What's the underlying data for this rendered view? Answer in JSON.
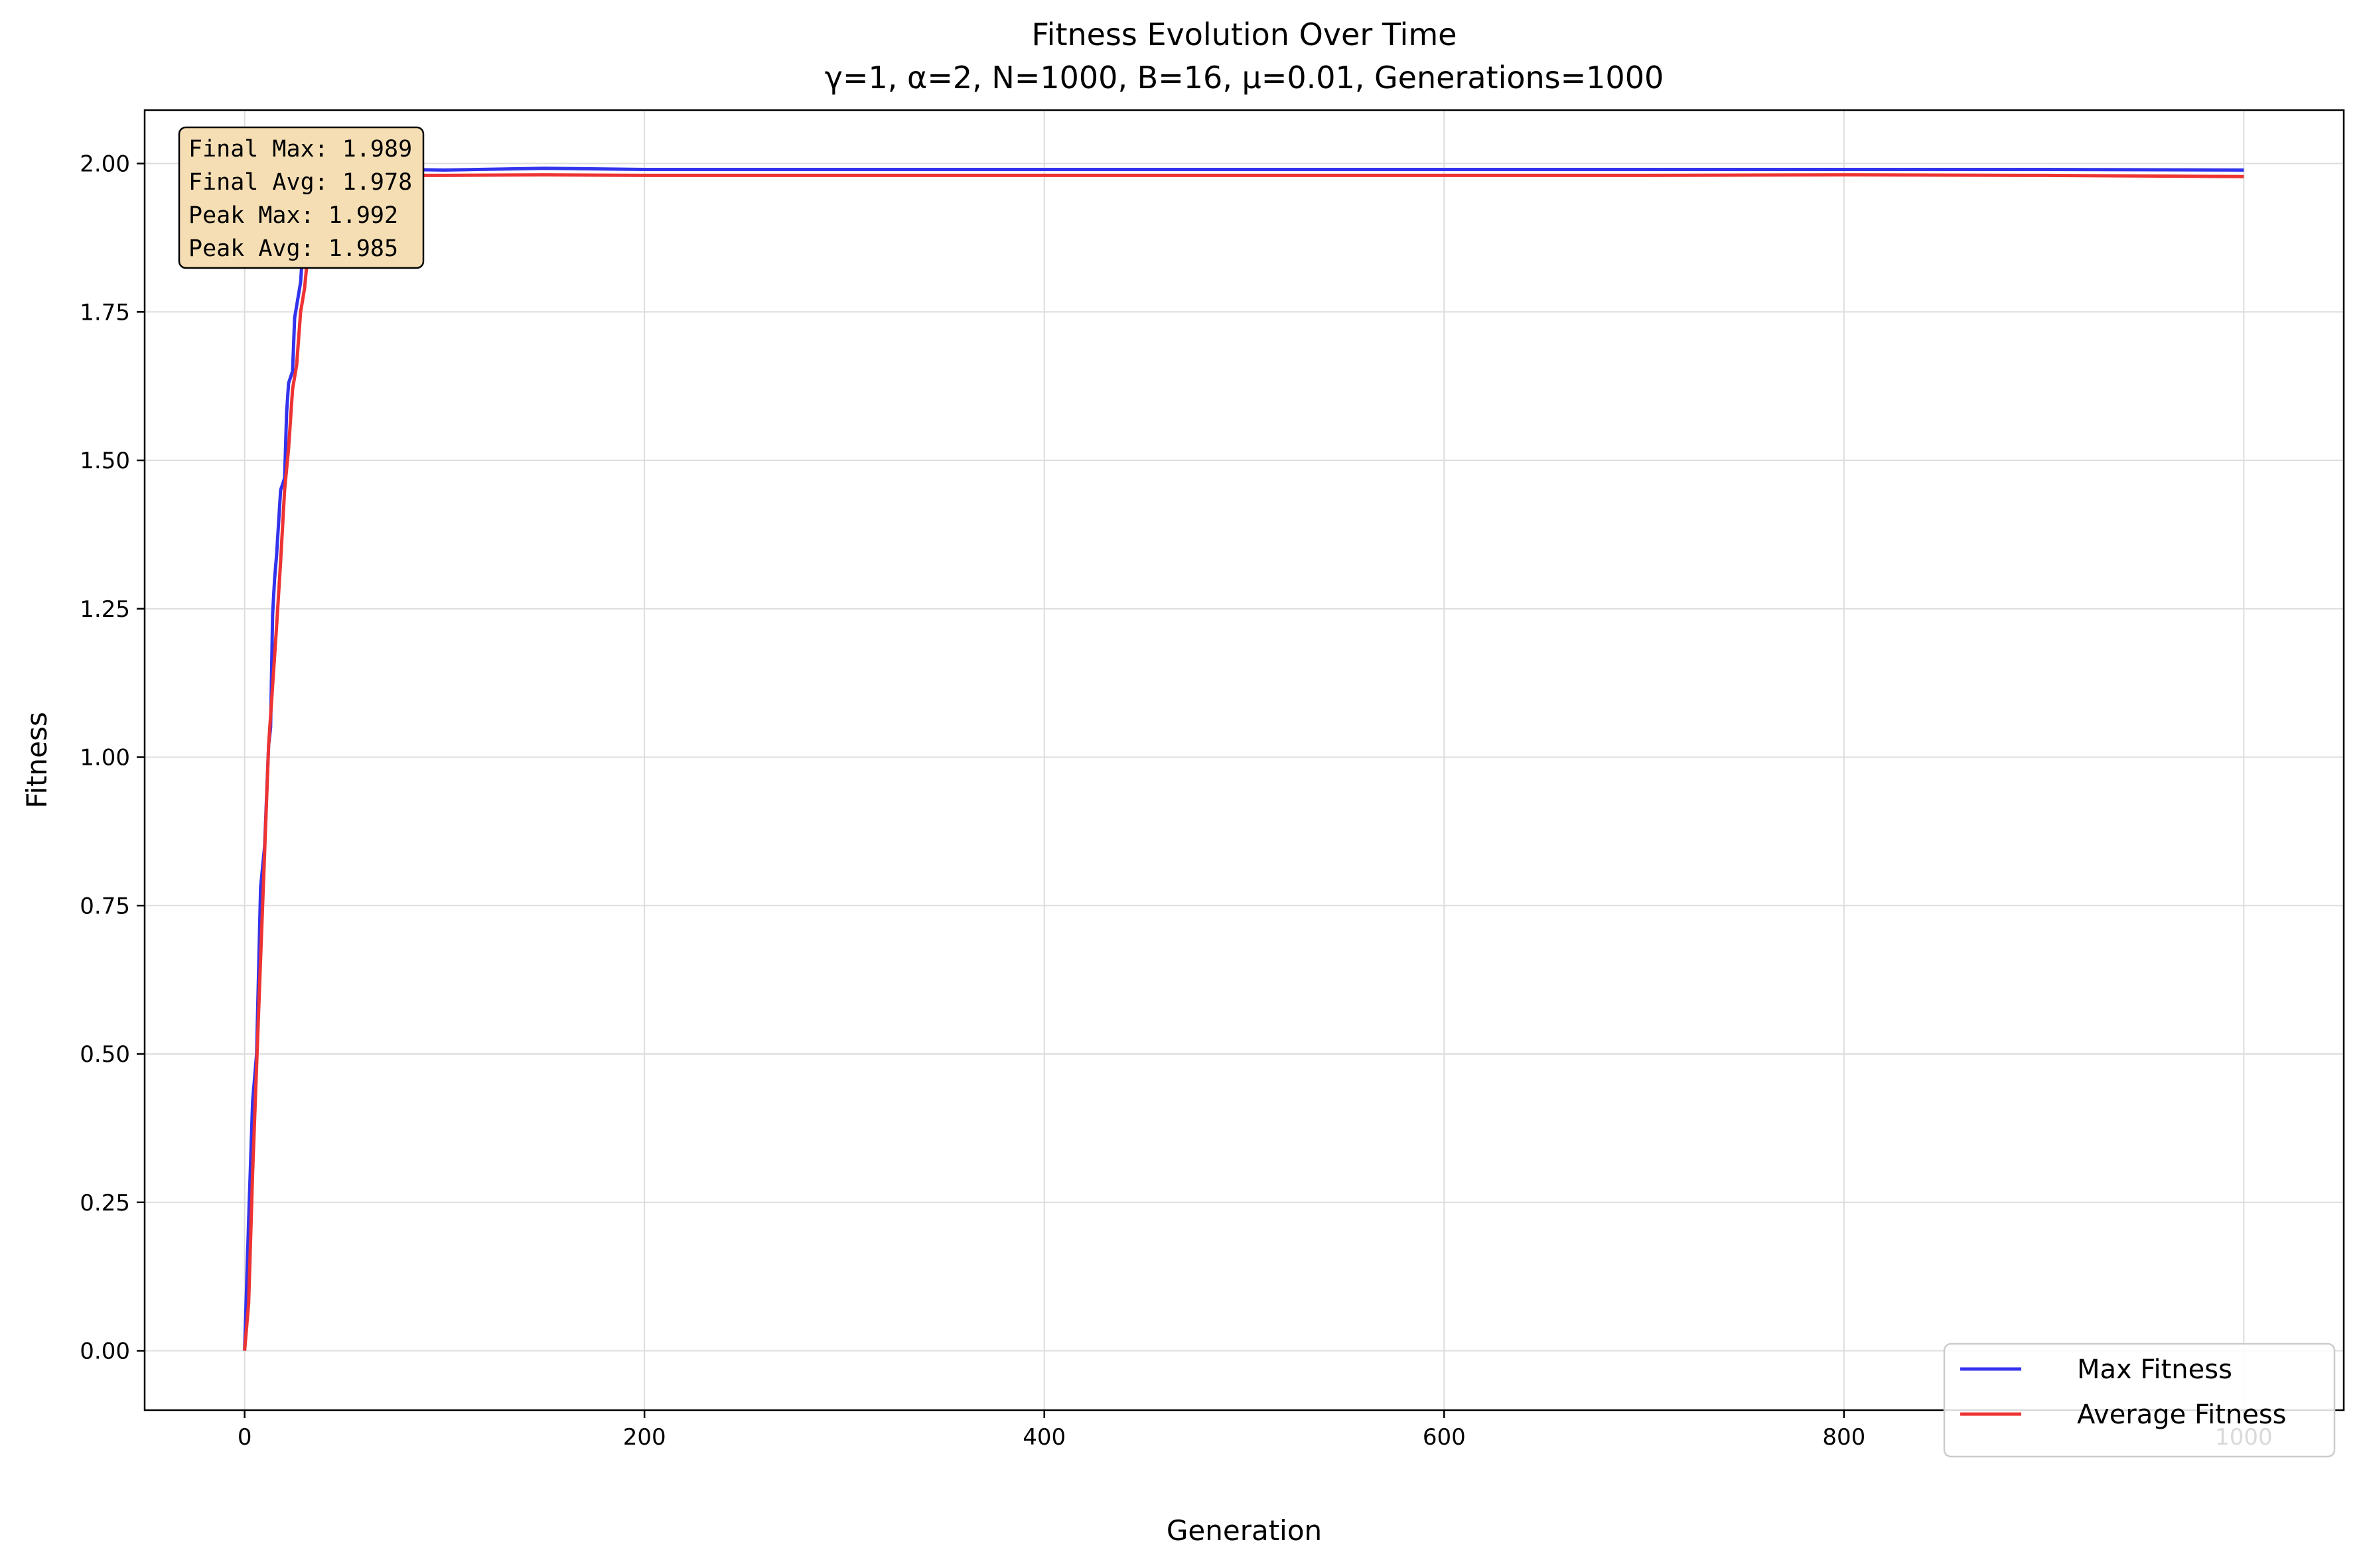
{
  "chart_data": {
    "type": "line",
    "title": "Fitness Evolution Over Time",
    "subtitle": "γ=1, α=2, N=1000, B=16, μ=0.01, Generations=1000",
    "xlabel": "Generation",
    "ylabel": "Fitness",
    "xlim": [
      -50,
      1050
    ],
    "ylim": [
      -0.1,
      2.09
    ],
    "xticks": [
      0,
      200,
      400,
      600,
      800,
      1000
    ],
    "xtick_labels": [
      "0",
      "200",
      "400",
      "600",
      "800",
      "1000"
    ],
    "yticks": [
      0.0,
      0.25,
      0.5,
      0.75,
      1.0,
      1.25,
      1.5,
      1.75,
      2.0
    ],
    "ytick_labels": [
      "0.00",
      "0.25",
      "0.50",
      "0.75",
      "1.00",
      "1.25",
      "1.50",
      "1.75",
      "2.00"
    ],
    "grid": true,
    "legend_position": "bottom-right",
    "series": [
      {
        "name": "Max Fitness",
        "color": "#3333ee",
        "x": [
          0,
          2,
          4,
          6,
          8,
          10,
          12,
          13,
          14,
          15,
          16,
          18,
          20,
          21,
          22,
          24,
          25,
          26,
          28,
          29,
          30,
          32,
          34,
          35,
          36,
          38,
          40,
          42,
          45,
          50,
          60,
          80,
          100,
          150,
          200,
          300,
          400,
          500,
          600,
          700,
          800,
          900,
          1000
        ],
        "y": [
          0.0,
          0.22,
          0.42,
          0.5,
          0.78,
          0.85,
          1.02,
          1.05,
          1.24,
          1.3,
          1.34,
          1.45,
          1.47,
          1.58,
          1.63,
          1.65,
          1.74,
          1.76,
          1.8,
          1.85,
          1.93,
          1.96,
          1.97,
          1.98,
          1.985,
          1.986,
          1.987,
          1.988,
          1.988,
          1.989,
          1.99,
          1.99,
          1.989,
          1.992,
          1.99,
          1.99,
          1.99,
          1.99,
          1.99,
          1.99,
          1.99,
          1.99,
          1.989
        ]
      },
      {
        "name": "Average Fitness",
        "color": "#ee3333",
        "x": [
          0,
          2,
          4,
          6,
          8,
          10,
          12,
          14,
          16,
          18,
          20,
          22,
          24,
          26,
          28,
          30,
          32,
          34,
          36,
          38,
          40,
          42,
          45,
          50,
          60,
          80,
          100,
          150,
          200,
          300,
          400,
          500,
          600,
          700,
          800,
          900,
          1000
        ],
        "y": [
          0.0,
          0.08,
          0.3,
          0.48,
          0.66,
          0.84,
          1.02,
          1.12,
          1.22,
          1.33,
          1.45,
          1.52,
          1.62,
          1.66,
          1.75,
          1.79,
          1.86,
          1.92,
          1.95,
          1.97,
          1.975,
          1.978,
          1.98,
          1.981,
          1.98,
          1.98,
          1.98,
          1.981,
          1.98,
          1.98,
          1.98,
          1.98,
          1.98,
          1.98,
          1.981,
          1.98,
          1.978
        ]
      }
    ],
    "annotation": {
      "lines": [
        "Final Max: 1.989",
        "Final Avg: 1.978",
        "Peak Max: 1.992",
        "Peak Avg: 1.985"
      ],
      "box_color": "#f5deb3"
    }
  }
}
